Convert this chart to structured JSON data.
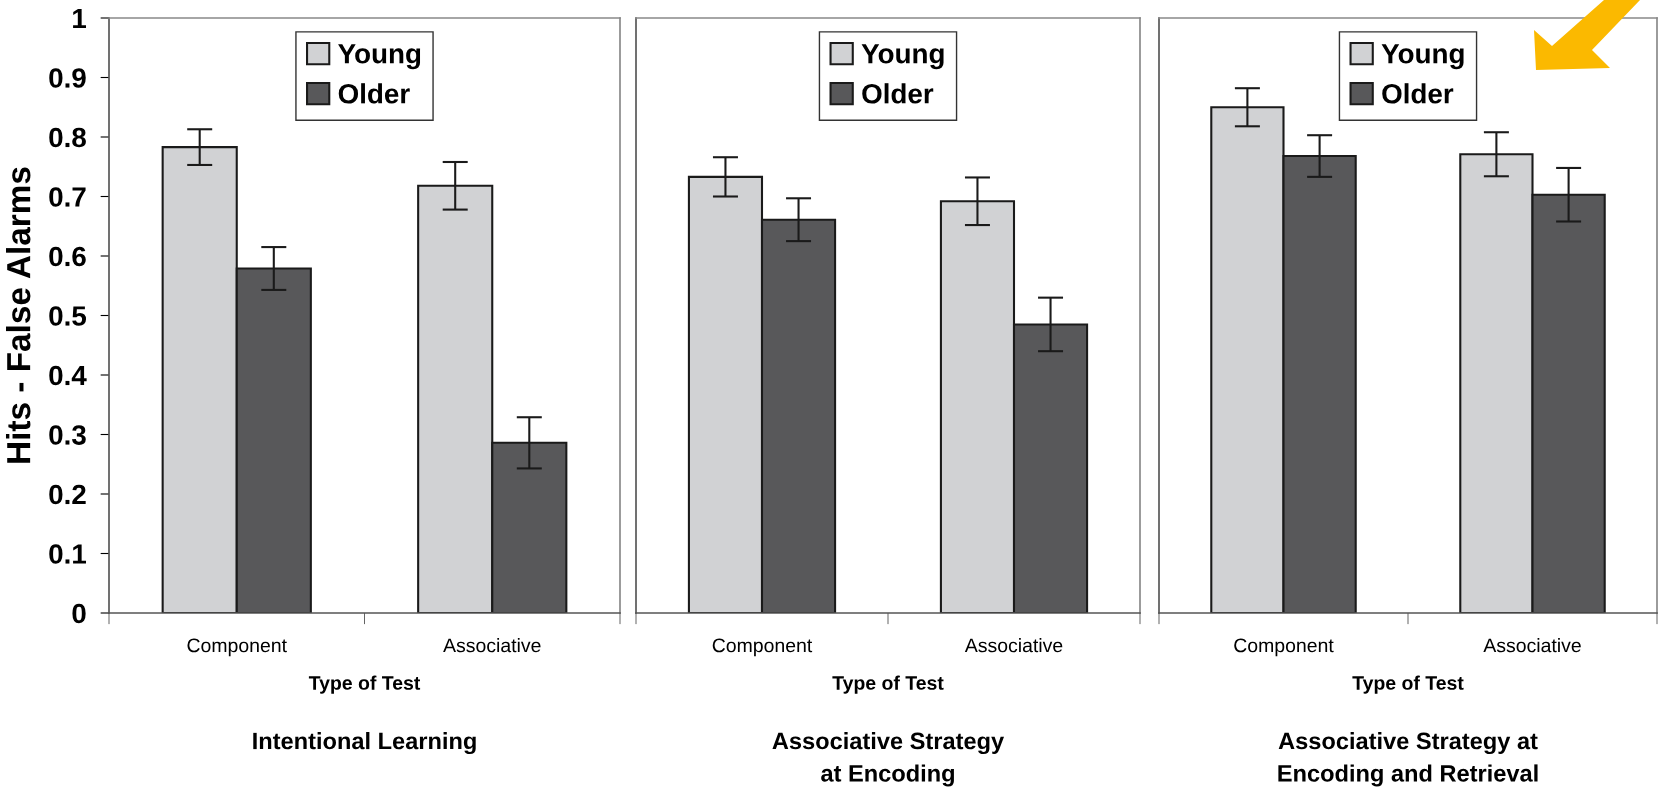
{
  "chart_data": [
    {
      "type": "bar",
      "title": "Intentional Learning",
      "xlabel": "Type of Test",
      "ylabel": "Hits - False Alarms",
      "categories": [
        "Component",
        "Associative"
      ],
      "ylim": [
        0,
        1
      ],
      "yticks": [
        0,
        0.1,
        0.2,
        0.3,
        0.4,
        0.5,
        0.6,
        0.7,
        0.8,
        0.9,
        1
      ],
      "legend": "top",
      "grid": false,
      "tick_labels": "xy",
      "series": [
        {
          "name": "Young",
          "color": "#d1d2d4",
          "values": [
            0.783,
            0.718
          ],
          "errors": [
            0.03,
            0.04
          ]
        },
        {
          "name": "Older",
          "color": "#58585a",
          "values": [
            0.579,
            0.286
          ],
          "errors": [
            0.036,
            0.043
          ]
        }
      ]
    },
    {
      "type": "bar",
      "title": "Associative Strategy\nat Encoding",
      "xlabel": "Type of Test",
      "categories": [
        "Component",
        "Associative"
      ],
      "ylim": [
        0,
        1
      ],
      "legend": "top",
      "grid": false,
      "tick_labels": "x",
      "series": [
        {
          "name": "Young",
          "color": "#d1d2d4",
          "values": [
            0.733,
            0.692
          ],
          "errors": [
            0.033,
            0.04
          ]
        },
        {
          "name": "Older",
          "color": "#58585a",
          "values": [
            0.661,
            0.485
          ],
          "errors": [
            0.036,
            0.045
          ]
        }
      ]
    },
    {
      "type": "bar",
      "title": "Associative Strategy at\nEncoding and Retrieval",
      "xlabel": "Type of Test",
      "categories": [
        "Component",
        "Associative"
      ],
      "ylim": [
        0,
        1
      ],
      "legend": "top",
      "grid": false,
      "tick_labels": "x",
      "series": [
        {
          "name": "Young",
          "color": "#d1d2d4",
          "values": [
            0.85,
            0.771
          ],
          "errors": [
            0.032,
            0.037
          ]
        },
        {
          "name": "Older",
          "color": "#58585a",
          "values": [
            0.768,
            0.703
          ],
          "errors": [
            0.035,
            0.045
          ]
        }
      ]
    }
  ]
}
